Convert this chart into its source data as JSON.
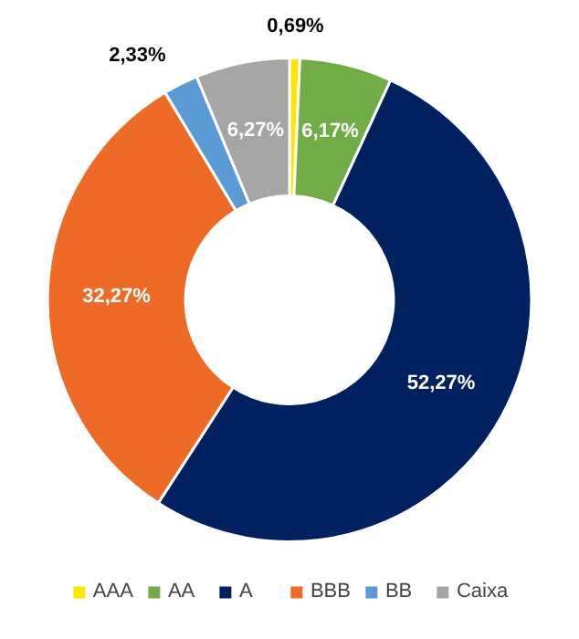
{
  "chart_data": {
    "type": "donut",
    "categories": [
      "AAA",
      "AA",
      "A",
      "BBB",
      "BB",
      "Caixa"
    ],
    "values": [
      0.69,
      6.17,
      52.27,
      32.27,
      2.33,
      6.27
    ],
    "colors": [
      "#ffe600",
      "#70ad47",
      "#002060",
      "#ed6a27",
      "#5b9bd5",
      "#a5a5a5"
    ],
    "value_labels": [
      "0,69%",
      "6,17%",
      "52,27%",
      "32,27%",
      "2,33%",
      "6,27%"
    ],
    "legend": "bottom"
  }
}
